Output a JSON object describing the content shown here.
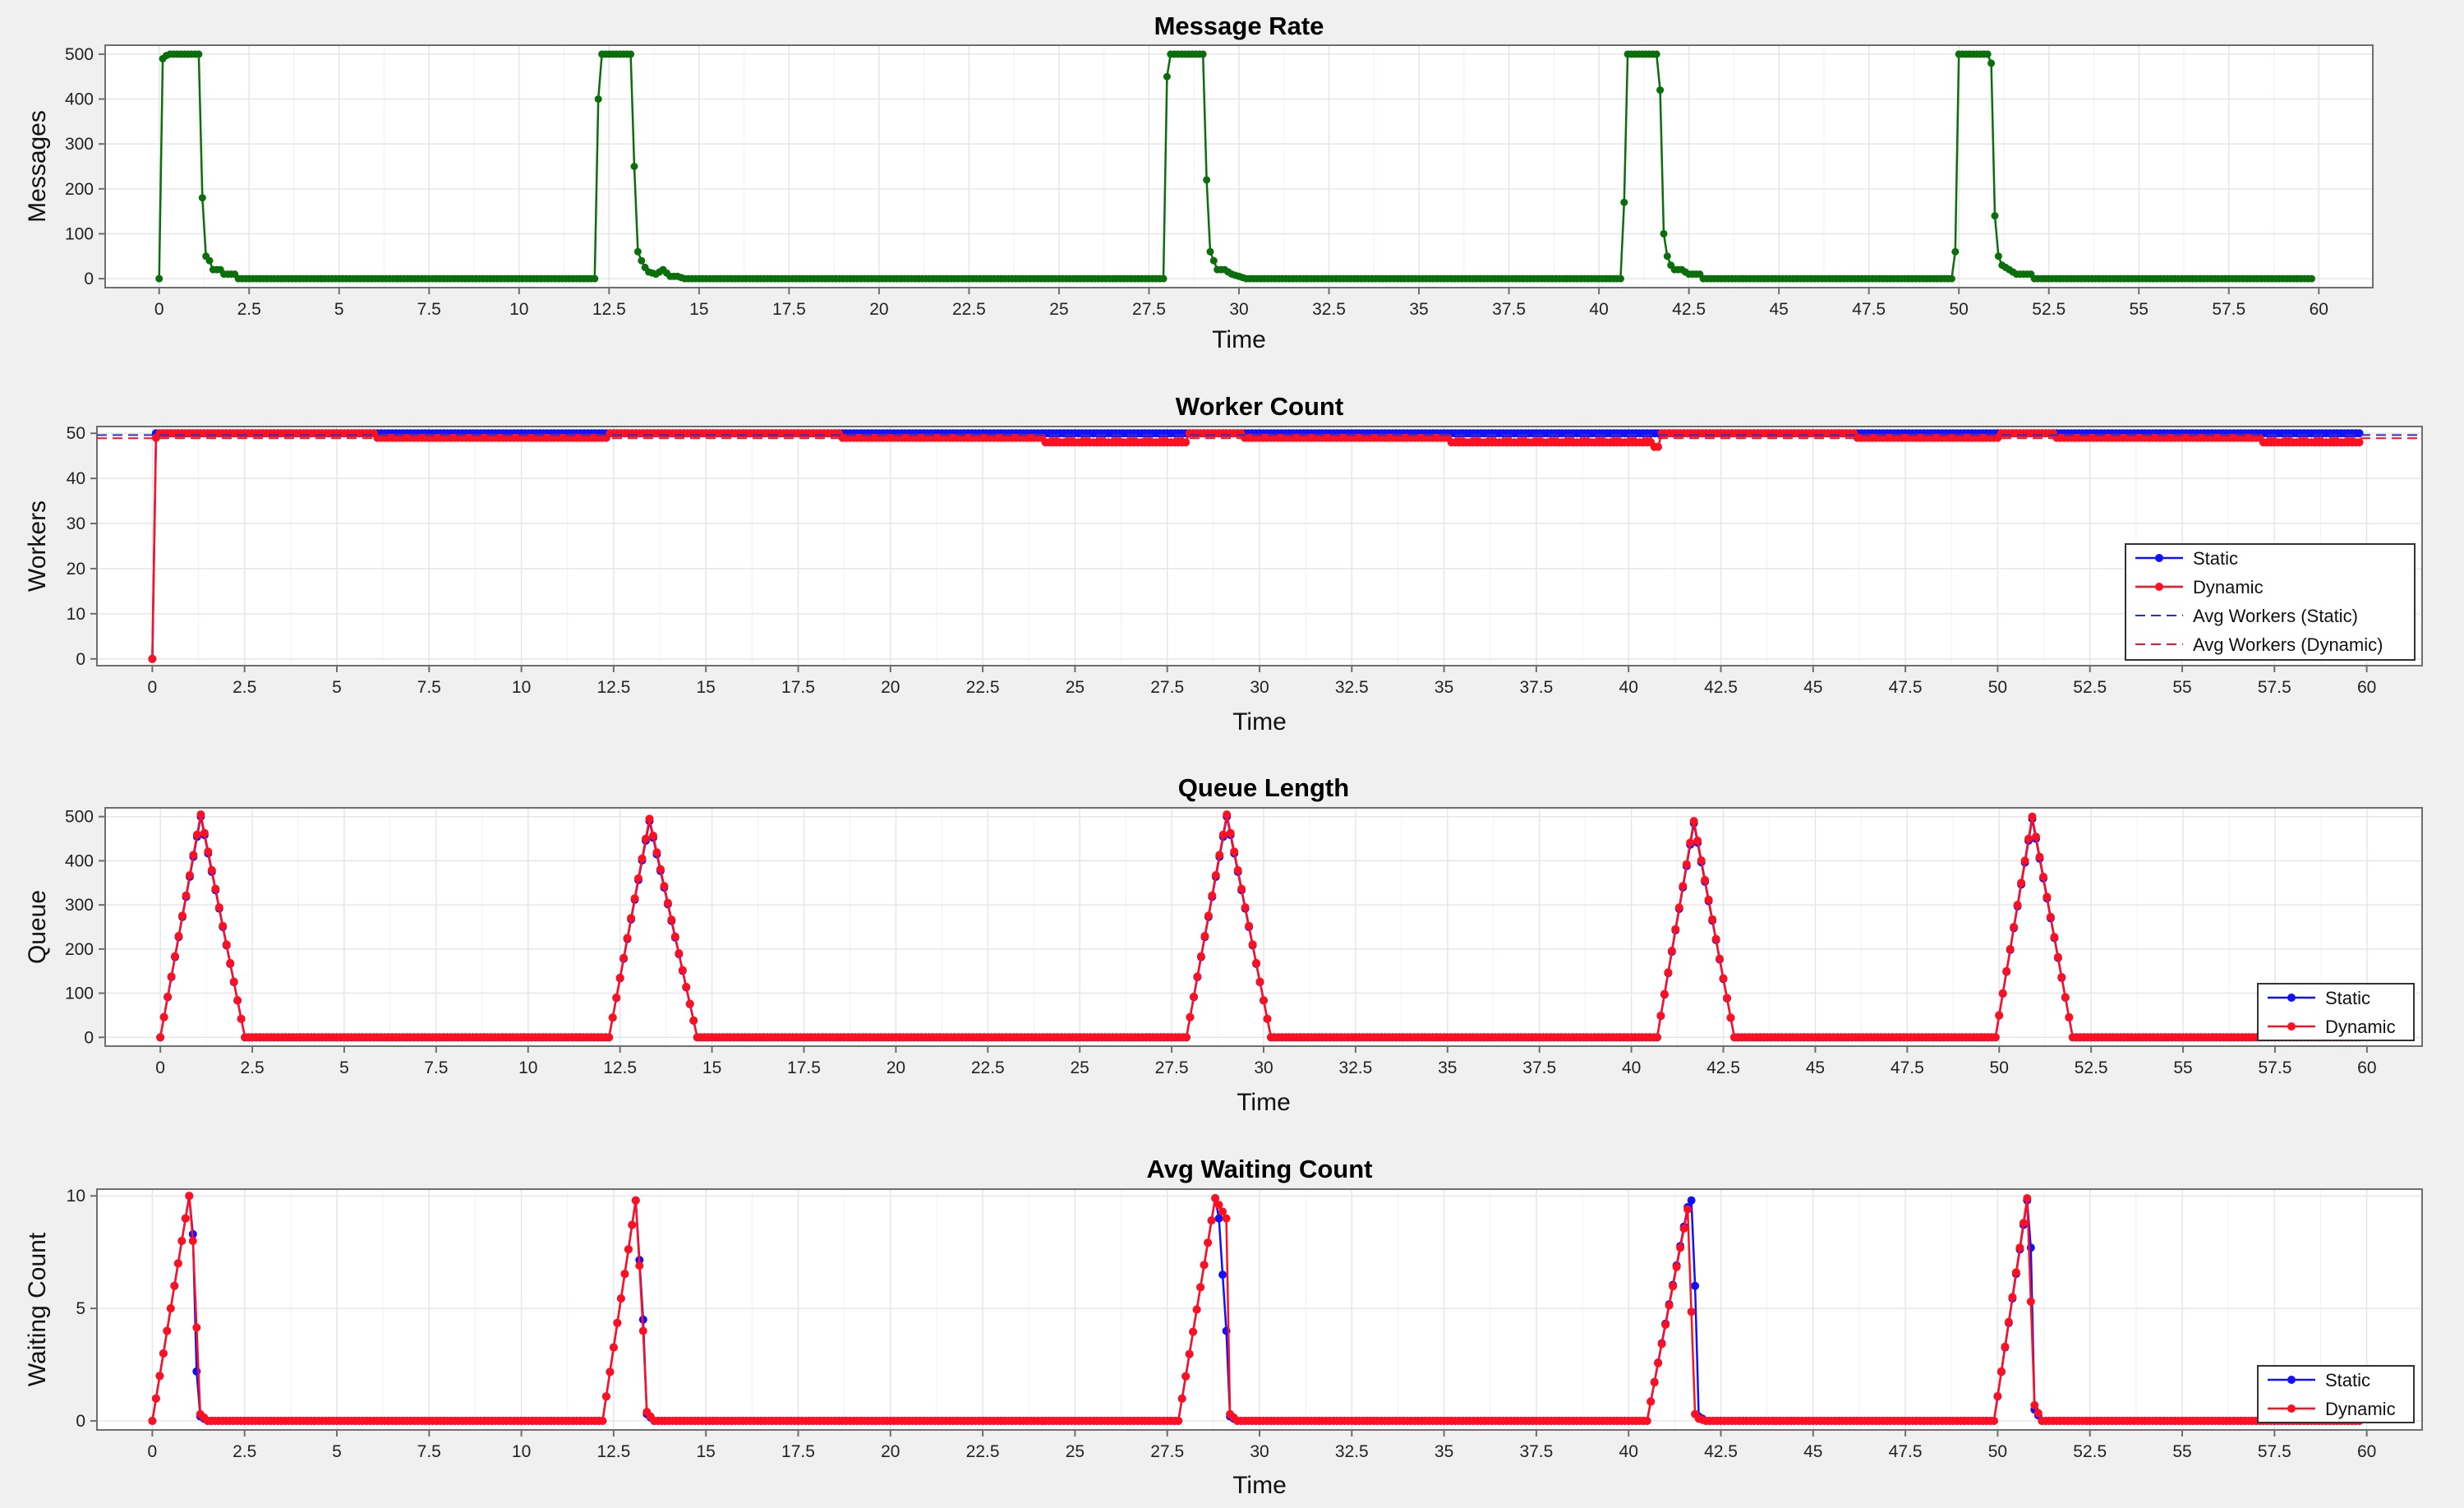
{
  "colors": {
    "green": "#0a6e0a",
    "static": "#1010ff",
    "dynamic": "#ff1020",
    "grid": "#e6e6e6",
    "frame": "#6e6e6e"
  },
  "chart_data": [
    {
      "type": "line",
      "title": "Message Rate",
      "xlabel": "Time",
      "ylabel": "Messages",
      "xlim": [
        -1.5,
        61.5
      ],
      "ylim": [
        -20,
        520
      ],
      "xticks": [
        0,
        2.5,
        5,
        7.5,
        10,
        12.5,
        15,
        17.5,
        20,
        22.5,
        25,
        27.5,
        30,
        32.5,
        35,
        37.5,
        40,
        42.5,
        45,
        47.5,
        50,
        52.5,
        55,
        57.5,
        60
      ],
      "xtick_labels": [
        "0",
        "2.5",
        "5",
        "7.5",
        "10",
        "12.5",
        "15",
        "17.5",
        "20",
        "22.5",
        "25",
        "27.5",
        "30",
        "32.5",
        "35",
        "37.5",
        "40",
        "42.5",
        "45",
        "47.5",
        "50",
        "52.5",
        "55",
        "57.5",
        "60"
      ],
      "yticks": [
        0,
        100,
        200,
        300,
        400,
        500
      ],
      "ytick_labels": [
        "0",
        "100",
        "200",
        "300",
        "400",
        "500"
      ],
      "grid": true,
      "legend": "none",
      "series": [
        {
          "color": "#0a6e0a",
          "x": [
            0,
            0.1,
            0.2,
            0.3,
            1.1,
            1.2,
            1.3,
            1.4,
            1.5,
            1.7,
            1.8,
            2.1,
            2.2,
            2.3,
            12.1,
            12.2,
            12.3,
            13.1,
            13.2,
            13.3,
            13.4,
            13.5,
            13.6,
            13.8,
            14.0,
            14.2,
            14.4,
            14.6,
            27.9,
            28.0,
            28.1,
            29.0,
            29.1,
            29.2,
            29.3,
            29.4,
            29.6,
            29.8,
            30.0,
            30.2,
            40.6,
            40.7,
            40.8,
            41.6,
            41.7,
            41.8,
            41.9,
            42.0,
            42.1,
            42.3,
            42.5,
            42.8,
            42.9,
            49.8,
            49.9,
            50.0,
            50.8,
            50.9,
            51.0,
            51.1,
            51.2,
            51.4,
            51.6,
            51.8,
            52.0,
            52.1,
            59.8
          ],
          "y": [
            0,
            490,
            497,
            500,
            500,
            180,
            50,
            40,
            20,
            20,
            10,
            10,
            0,
            0,
            0,
            400,
            500,
            500,
            250,
            60,
            40,
            25,
            15,
            10,
            20,
            5,
            5,
            0,
            0,
            450,
            500,
            500,
            220,
            60,
            40,
            20,
            20,
            10,
            5,
            0,
            0,
            170,
            500,
            500,
            420,
            100,
            50,
            30,
            20,
            20,
            10,
            10,
            0,
            0,
            60,
            500,
            500,
            480,
            140,
            50,
            30,
            20,
            10,
            10,
            10,
            0,
            0
          ]
        }
      ]
    },
    {
      "type": "line",
      "title": "Worker Count",
      "xlabel": "Time",
      "ylabel": "Workers",
      "xlim": [
        -1.5,
        61.5
      ],
      "ylim": [
        -1.5,
        51.5
      ],
      "xticks": [
        0,
        2.5,
        5,
        7.5,
        10,
        12.5,
        15,
        17.5,
        20,
        22.5,
        25,
        27.5,
        30,
        32.5,
        35,
        37.5,
        40,
        42.5,
        45,
        47.5,
        50,
        52.5,
        55,
        57.5,
        60
      ],
      "xtick_labels": [
        "0",
        "2.5",
        "5",
        "7.5",
        "10",
        "12.5",
        "15",
        "17.5",
        "20",
        "22.5",
        "25",
        "27.5",
        "30",
        "32.5",
        "35",
        "37.5",
        "40",
        "42.5",
        "45",
        "47.5",
        "50",
        "52.5",
        "55",
        "57.5",
        "60"
      ],
      "yticks": [
        0,
        10,
        20,
        30,
        40,
        50
      ],
      "ytick_labels": [
        "0",
        "10",
        "20",
        "30",
        "40",
        "50"
      ],
      "grid": true,
      "legend": "bottom-right",
      "series": [
        {
          "name": "Static",
          "color": "#1010ff",
          "x": [
            0,
            0.1,
            59.8
          ],
          "y": [
            0,
            50,
            50
          ]
        },
        {
          "name": "Dynamic",
          "color": "#ff1020",
          "x": [
            0,
            0.1,
            0.2,
            6.0,
            6.1,
            12.3,
            12.4,
            18.6,
            18.7,
            24.1,
            24.2,
            28.0,
            28.1,
            29.5,
            29.6,
            35.1,
            35.2,
            40.6,
            40.7,
            40.8,
            40.9,
            46.1,
            46.2,
            50.0,
            50.1,
            51.5,
            51.6,
            57.1,
            57.2,
            59.8
          ],
          "y": [
            0,
            49,
            50,
            50,
            49,
            49,
            50,
            50,
            49,
            49,
            48,
            48,
            50,
            50,
            49,
            49,
            48,
            48,
            47,
            47,
            50,
            50,
            49,
            49,
            50,
            50,
            49,
            49,
            48,
            48
          ]
        },
        {
          "name": "Avg Workers (Static)",
          "color": "#3030c0",
          "dashed": true,
          "value": 49.6
        },
        {
          "name": "Avg Workers (Dynamic)",
          "color": "#ff1020",
          "dashed": true,
          "value": 48.9
        }
      ]
    },
    {
      "type": "line",
      "title": "Queue Length",
      "xlabel": "Time",
      "ylabel": "Queue",
      "xlim": [
        -1.5,
        61.5
      ],
      "ylim": [
        -20,
        520
      ],
      "xticks": [
        0,
        2.5,
        5,
        7.5,
        10,
        12.5,
        15,
        17.5,
        20,
        22.5,
        25,
        27.5,
        30,
        32.5,
        35,
        37.5,
        40,
        42.5,
        45,
        47.5,
        50,
        52.5,
        55,
        57.5,
        60
      ],
      "xtick_labels": [
        "0",
        "2.5",
        "5",
        "7.5",
        "10",
        "12.5",
        "15",
        "17.5",
        "20",
        "22.5",
        "25",
        "27.5",
        "30",
        "32.5",
        "35",
        "37.5",
        "40",
        "42.5",
        "45",
        "47.5",
        "50",
        "52.5",
        "55",
        "57.5",
        "60"
      ],
      "yticks": [
        0,
        100,
        200,
        300,
        400,
        500
      ],
      "ytick_labels": [
        "0",
        "100",
        "200",
        "300",
        "400",
        "500"
      ],
      "grid": true,
      "legend": "bottom-right",
      "series": [
        {
          "name": "Static",
          "color": "#1010ff",
          "x": [
            0,
            1.1,
            2.3,
            2.4,
            12.2,
            13.3,
            14.6,
            14.7,
            27.9,
            29.0,
            30.2,
            30.3,
            40.7,
            41.7,
            42.8,
            42.9,
            49.9,
            50.9,
            52.0,
            52.1,
            59.8
          ],
          "y": [
            0,
            500,
            0,
            0,
            0,
            490,
            0,
            0,
            0,
            500,
            0,
            0,
            0,
            485,
            0,
            0,
            0,
            495,
            0,
            0,
            0
          ]
        },
        {
          "name": "Dynamic",
          "color": "#ff1020",
          "x": [
            0,
            1.1,
            2.3,
            2.4,
            12.2,
            13.3,
            14.6,
            14.7,
            27.9,
            29.0,
            30.2,
            30.3,
            40.7,
            41.7,
            42.8,
            42.9,
            49.9,
            50.9,
            52.0,
            52.1,
            59.8
          ],
          "y": [
            0,
            505,
            0,
            0,
            0,
            495,
            0,
            0,
            0,
            505,
            0,
            0,
            0,
            490,
            0,
            0,
            0,
            500,
            0,
            0,
            0
          ]
        }
      ]
    },
    {
      "type": "line",
      "title": "Avg Waiting Count",
      "xlabel": "Time",
      "ylabel": "Waiting Count",
      "xlim": [
        -1.5,
        61.5
      ],
      "ylim": [
        -0.4,
        10.3
      ],
      "xticks": [
        0,
        2.5,
        5,
        7.5,
        10,
        12.5,
        15,
        17.5,
        20,
        22.5,
        25,
        27.5,
        30,
        32.5,
        35,
        37.5,
        40,
        42.5,
        45,
        47.5,
        50,
        52.5,
        55,
        57.5,
        60
      ],
      "xtick_labels": [
        "0",
        "2.5",
        "5",
        "7.5",
        "10",
        "12.5",
        "15",
        "17.5",
        "20",
        "22.5",
        "25",
        "27.5",
        "30",
        "32.5",
        "35",
        "37.5",
        "40",
        "42.5",
        "45",
        "47.5",
        "50",
        "52.5",
        "55",
        "57.5",
        "60"
      ],
      "yticks": [
        0,
        5,
        10
      ],
      "ytick_labels": [
        "0",
        "5",
        "10"
      ],
      "grid": true,
      "legend": "bottom-right",
      "series": [
        {
          "name": "Static",
          "color": "#1010ff",
          "x": [
            0,
            1.0,
            1.1,
            1.2,
            1.3,
            1.5,
            12.2,
            13.1,
            13.3,
            13.4,
            13.6,
            27.8,
            28.8,
            28.9,
            29.1,
            29.2,
            29.4,
            40.5,
            41.6,
            41.7,
            41.8,
            41.9,
            42.1,
            49.9,
            50.8,
            50.9,
            51.0,
            51.2,
            59.8
          ],
          "y": [
            0,
            10,
            8.3,
            2.2,
            0.2,
            0,
            0,
            9.8,
            4.5,
            0.3,
            0,
            0,
            9.9,
            9.0,
            4.0,
            0.2,
            0,
            0,
            9.5,
            9.8,
            6.0,
            0.2,
            0,
            0,
            9.8,
            7.7,
            0.5,
            0,
            0
          ]
        },
        {
          "name": "Dynamic",
          "color": "#ff1020",
          "x": [
            0,
            1.0,
            1.1,
            1.3,
            1.5,
            12.2,
            13.1,
            13.3,
            13.4,
            13.6,
            27.8,
            28.8,
            29.1,
            29.2,
            29.4,
            40.5,
            41.6,
            41.8,
            41.9,
            42.1,
            49.9,
            50.8,
            51.0,
            51.2,
            59.8
          ],
          "y": [
            0,
            10,
            8.0,
            0.3,
            0,
            0,
            9.8,
            4.0,
            0.4,
            0,
            0,
            9.9,
            9.0,
            0.3,
            0,
            0,
            9.4,
            0.3,
            0.1,
            0,
            0,
            9.9,
            0.7,
            0,
            0
          ]
        }
      ]
    }
  ]
}
